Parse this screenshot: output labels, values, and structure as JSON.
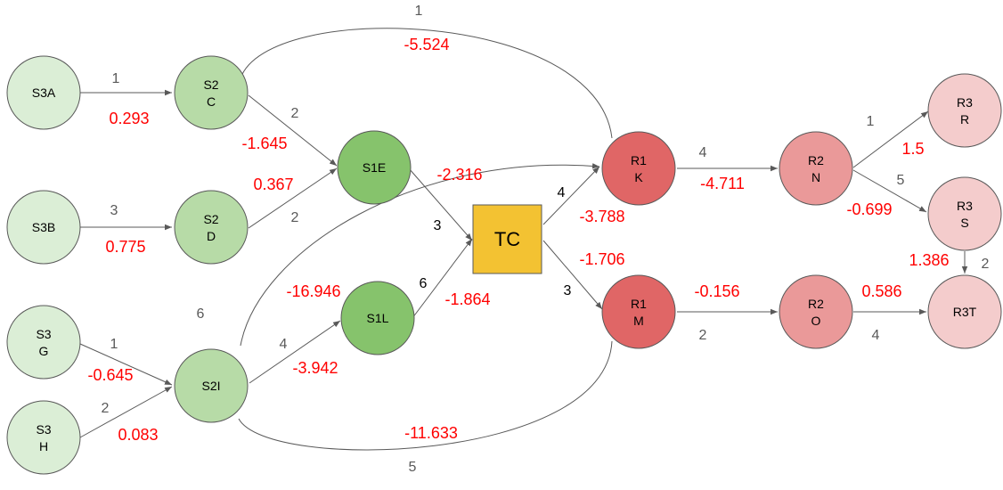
{
  "colors": {
    "s3_fill": "#dbeed6",
    "s2_fill": "#b7dba7",
    "s1_fill": "#86c36c",
    "tc_fill": "#f3c232",
    "r1_fill": "#e06666",
    "r2_fill": "#ea9999",
    "r3_fill": "#f4cccc",
    "edge": "#595959",
    "coef": "#ff0000"
  },
  "nodes": {
    "s3a": [
      "S3A"
    ],
    "s3b": [
      "S3B"
    ],
    "s3g": [
      "S3",
      "G"
    ],
    "s3h": [
      "S3",
      "H"
    ],
    "s2c": [
      "S2",
      "C"
    ],
    "s2d": [
      "S2",
      "D"
    ],
    "s2i": [
      "S2I"
    ],
    "s1e": [
      "S1E"
    ],
    "s1l": [
      "S1L"
    ],
    "tc": [
      "TC"
    ],
    "r1k": [
      "R1",
      "K"
    ],
    "r1m": [
      "R1",
      "M"
    ],
    "r2n": [
      "R2",
      "N"
    ],
    "r2o": [
      "R2",
      "O"
    ],
    "r3r": [
      "R3",
      "R"
    ],
    "r3s": [
      "R3",
      "S"
    ],
    "r3t": [
      "R3T"
    ]
  },
  "labels": {
    "s3a_s2c_w": "1",
    "s3a_s2c_c": "0.293",
    "s3b_s2d_w": "3",
    "s3b_s2d_c": "0.775",
    "s3g_s2i_w": "1",
    "s3g_s2i_c": "-0.645",
    "s3h_s2i_w": "2",
    "s3h_s2i_c": "0.083",
    "s2c_s1e_w": "2",
    "s2c_s1e_c": "-1.645",
    "s2d_s1e_w": "2",
    "s2d_s1e_c": "0.367",
    "s2c_r1k_w": "1",
    "s2c_r1k_c": "-5.524",
    "s2i_r1k_w": "6",
    "s2i_r1k_c": "-16.946",
    "s1e_r1k_c": "-2.316",
    "s2i_s1l_w": "4",
    "s2i_s1l_c": "-3.942",
    "s2i_r1m_w": "5",
    "s2i_r1m_c": "-11.633",
    "s1e_tc_w": "3",
    "s1l_tc_w": "6",
    "s1l_tc_c": "-1.864",
    "tc_r1k_w": "4",
    "tc_r1k_c": "-3.788",
    "tc_r1m_w": "3",
    "tc_r1m_c": "-1.706",
    "r1k_r2n_w": "4",
    "r1k_r2n_c": "-4.711",
    "r1m_r2o_w": "2",
    "r1m_r2o_c": "-0.156",
    "r2n_r3r_w": "1",
    "r2n_r3r_c": "1.5",
    "r2n_r3s_w": "5",
    "r2n_r3s_c": "-0.699",
    "r3s_r3t_w": "2",
    "r3s_r3t_c": "1.386",
    "r2o_r3t_w": "4",
    "r2o_r3t_c": "0.586"
  }
}
